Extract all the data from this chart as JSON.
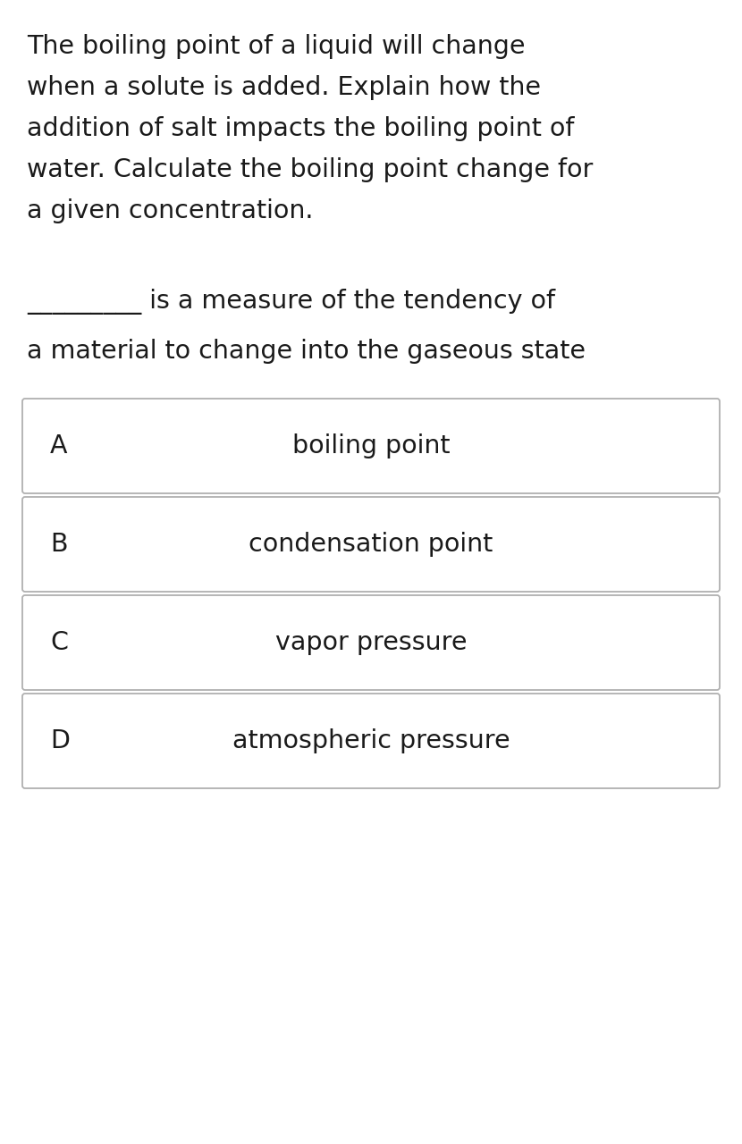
{
  "background_color": "#ffffff",
  "para_lines": [
    "The boiling point of a liquid will change",
    "when a solute is added. Explain how the",
    "addition of salt impacts the boiling point of",
    "water. Calculate the boiling point change for",
    "a given concentration."
  ],
  "question_line1": "_________ is a measure of the tendency of",
  "question_line2": "a material to change into the gaseous state",
  "options": [
    {
      "label": "A",
      "text": "boiling point"
    },
    {
      "label": "B",
      "text": "condensation point"
    },
    {
      "label": "C",
      "text": "vapor pressure"
    },
    {
      "label": "D",
      "text": "atmospheric pressure"
    }
  ],
  "text_color": "#1a1a1a",
  "box_edge_color": "#b0b0b0",
  "box_face_color": "#ffffff",
  "font_size_paragraph": 20.5,
  "font_size_question": 20.5,
  "font_size_options": 20.5,
  "font_size_label": 20.5,
  "fig_width": 8.3,
  "fig_height": 12.8,
  "dpi": 100
}
